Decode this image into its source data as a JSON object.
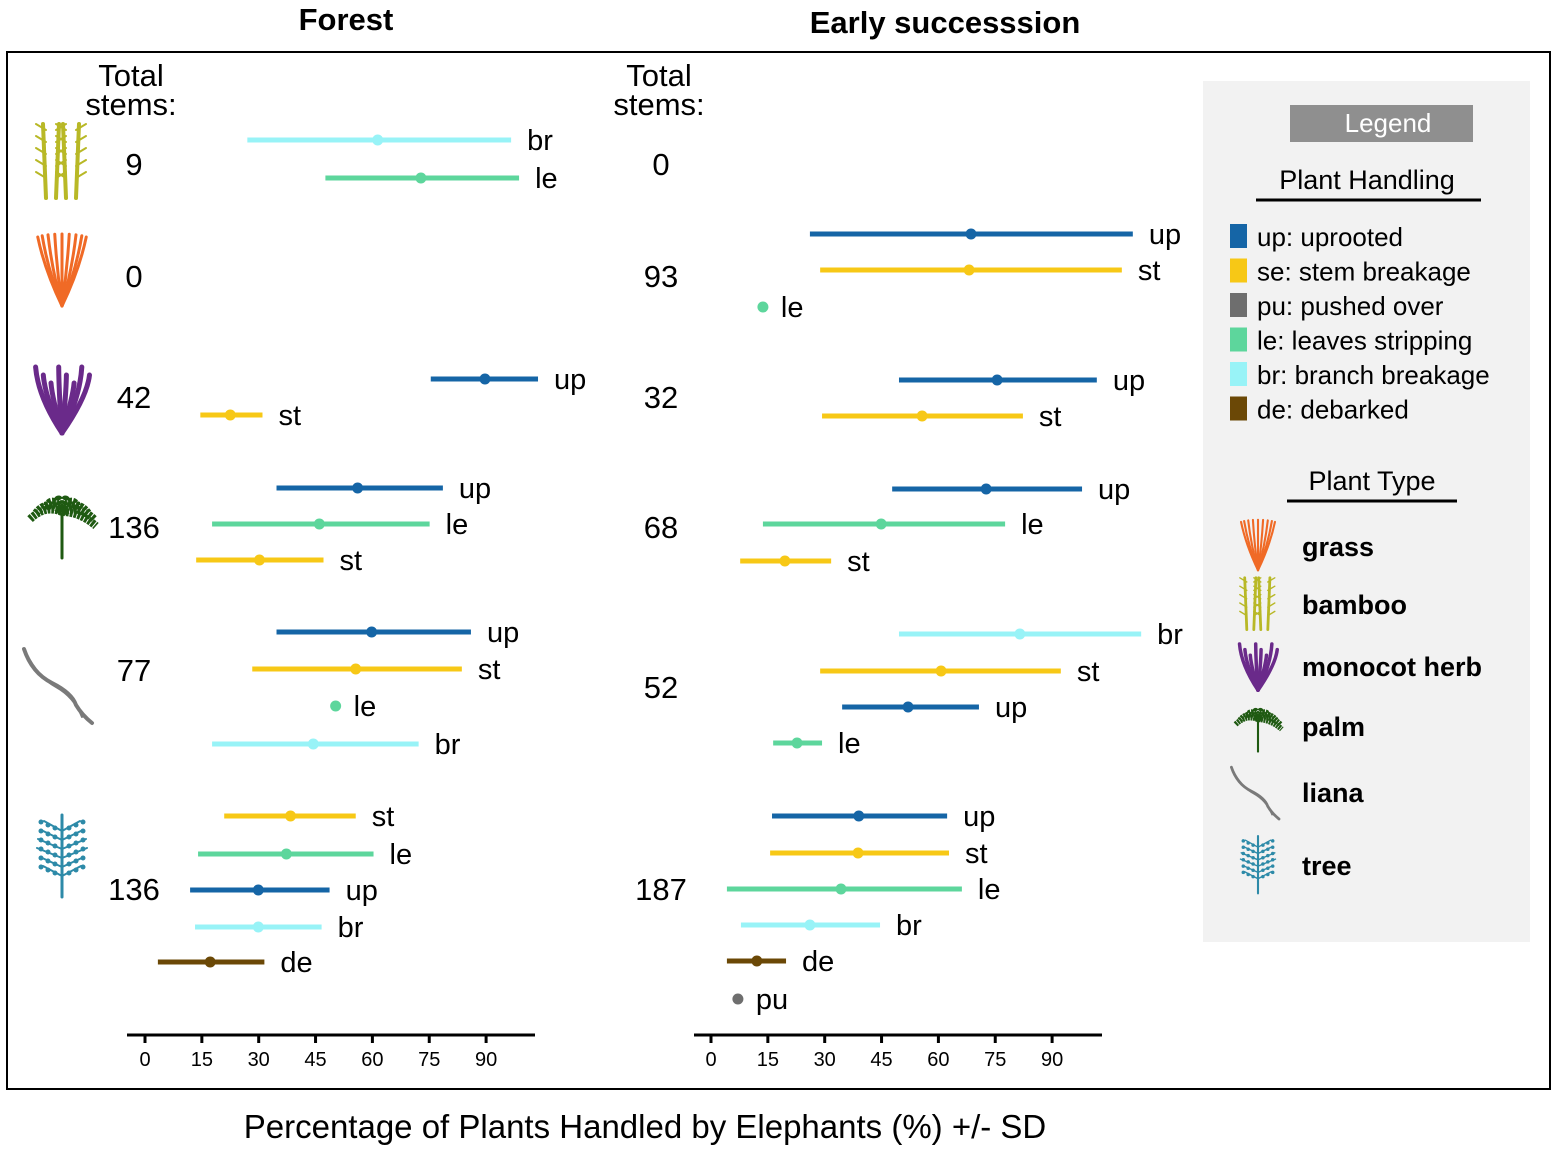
{
  "chart_data": {
    "type": "errorbar-dot",
    "xlabel": "Percentage of Plants Handled by Elephants (%) +/- SD",
    "xticks": [
      0,
      15,
      30,
      45,
      60,
      75,
      90
    ],
    "xlim": [
      0,
      105
    ],
    "total_label": [
      "Total",
      "stems:"
    ],
    "colors": {
      "up": "#1565a6",
      "st": "#f7c816",
      "pu": "#6e6e6e",
      "le": "#5dd69c",
      "br": "#98f3f7",
      "de": "#6b4806"
    },
    "panels": [
      {
        "title": "Forest",
        "groups": [
          {
            "plant": "bamboo",
            "total": "9",
            "rows": [
              {
                "code": "br",
                "mean": 61.4,
                "lo": 27.0,
                "hi": 96.6
              },
              {
                "code": "le",
                "mean": 72.8,
                "lo": 47.6,
                "hi": 98.7
              }
            ]
          },
          {
            "plant": "grass",
            "total": "0",
            "rows": []
          },
          {
            "plant": "monocot herb",
            "total": "42",
            "rows": [
              {
                "code": "up",
                "mean": 89.7,
                "lo": 75.4,
                "hi": 103.7
              },
              {
                "code": "st",
                "mean": 22.5,
                "lo": 14.6,
                "hi": 31.0
              }
            ]
          },
          {
            "plant": "palm",
            "total": "136",
            "rows": [
              {
                "code": "up",
                "mean": 56.1,
                "lo": 34.7,
                "hi": 78.6
              },
              {
                "code": "le",
                "mean": 46.0,
                "lo": 17.7,
                "hi": 75.1
              },
              {
                "code": "st",
                "mean": 30.2,
                "lo": 13.5,
                "hi": 47.1
              }
            ]
          },
          {
            "plant": "liana",
            "total": "77",
            "rows": [
              {
                "code": "up",
                "mean": 59.8,
                "lo": 34.7,
                "hi": 86.0
              },
              {
                "code": "st",
                "mean": 55.6,
                "lo": 28.3,
                "hi": 83.6
              },
              {
                "code": "le",
                "mean": 50.3,
                "lo": null,
                "hi": null
              },
              {
                "code": "br",
                "mean": 44.4,
                "lo": 17.7,
                "hi": 72.2
              }
            ]
          },
          {
            "plant": "tree",
            "total": "136",
            "rows": [
              {
                "code": "st",
                "mean": 38.4,
                "lo": 20.9,
                "hi": 55.6
              },
              {
                "code": "le",
                "mean": 37.3,
                "lo": 14.0,
                "hi": 60.3
              },
              {
                "code": "up",
                "mean": 29.9,
                "lo": 11.9,
                "hi": 48.7
              },
              {
                "code": "br",
                "mean": 29.9,
                "lo": 13.2,
                "hi": 46.6
              },
              {
                "code": "de",
                "mean": 17.2,
                "lo": 3.4,
                "hi": 31.5
              }
            ]
          }
        ]
      },
      {
        "title": "Early successsion",
        "groups": [
          {
            "plant": "bamboo",
            "total": "0",
            "rows": []
          },
          {
            "plant": "grass",
            "total": "93",
            "rows": [
              {
                "code": "up",
                "mean": 68.6,
                "lo": 26.1,
                "hi": 111.3
              },
              {
                "code": "st",
                "mean": 68.1,
                "lo": 28.8,
                "hi": 108.4
              },
              {
                "code": "le",
                "mean": 13.7,
                "lo": null,
                "hi": null
              }
            ]
          },
          {
            "plant": "monocot herb",
            "total": "32",
            "rows": [
              {
                "code": "up",
                "mean": 75.5,
                "lo": 49.6,
                "hi": 101.8
              },
              {
                "code": "st",
                "mean": 55.7,
                "lo": 29.3,
                "hi": 82.3
              }
            ]
          },
          {
            "plant": "palm",
            "total": "68",
            "rows": [
              {
                "code": "up",
                "mean": 72.6,
                "lo": 47.8,
                "hi": 97.9
              },
              {
                "code": "le",
                "mean": 44.9,
                "lo": 13.7,
                "hi": 77.6
              },
              {
                "code": "st",
                "mean": 19.5,
                "lo": 7.7,
                "hi": 31.7
              }
            ]
          },
          {
            "plant": "liana",
            "total": "52",
            "rows": [
              {
                "code": "br",
                "mean": 81.5,
                "lo": 49.6,
                "hi": 113.5
              },
              {
                "code": "st",
                "mean": 60.7,
                "lo": 28.8,
                "hi": 92.3
              },
              {
                "code": "up",
                "mean": 52.0,
                "lo": 34.6,
                "hi": 70.7
              },
              {
                "code": "le",
                "mean": 22.7,
                "lo": 16.4,
                "hi": 29.3
              }
            ]
          },
          {
            "plant": "tree",
            "total": "187",
            "rows": [
              {
                "code": "up",
                "mean": 39.0,
                "lo": 16.1,
                "hi": 62.3
              },
              {
                "code": "st",
                "mean": 38.8,
                "lo": 15.6,
                "hi": 62.8
              },
              {
                "code": "le",
                "mean": 34.3,
                "lo": 4.2,
                "hi": 66.2
              },
              {
                "code": "br",
                "mean": 26.1,
                "lo": 7.9,
                "hi": 44.6
              },
              {
                "code": "de",
                "mean": 12.1,
                "lo": 4.2,
                "hi": 19.8
              },
              {
                "code": "pu",
                "mean": 7.1,
                "lo": null,
                "hi": null
              }
            ]
          }
        ]
      }
    ],
    "legend": {
      "title": "Legend",
      "handling_title": "Plant Handling",
      "handling": [
        {
          "code": "up",
          "label": "up: uprooted"
        },
        {
          "code": "st",
          "label": "se: stem breakage"
        },
        {
          "code": "pu",
          "label": "pu: pushed over"
        },
        {
          "code": "le",
          "label": "le: leaves stripping"
        },
        {
          "code": "br",
          "label": "br: branch breakage"
        },
        {
          "code": "de",
          "label": "de: debarked"
        }
      ],
      "type_title": "Plant Type",
      "types": [
        "grass",
        "bamboo",
        "monocot herb",
        "palm",
        "liana",
        "tree"
      ]
    }
  }
}
